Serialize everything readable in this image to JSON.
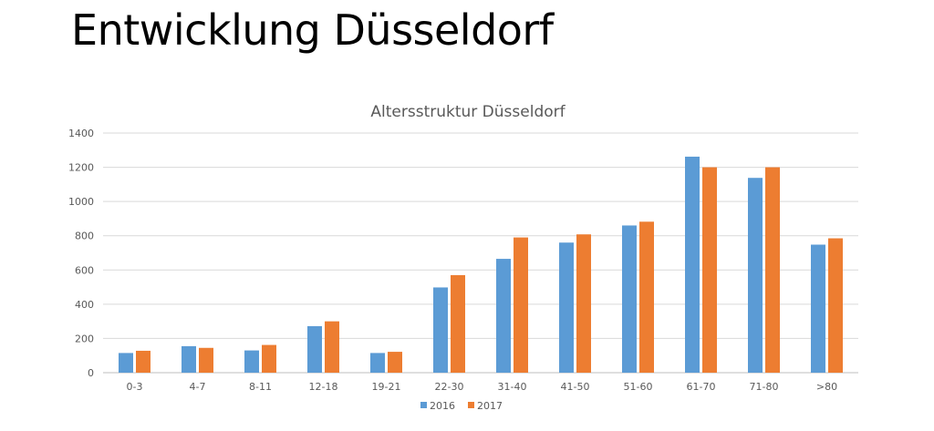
{
  "slide": {
    "title": "Entwicklung Düsseldorf"
  },
  "chart_data": {
    "type": "bar",
    "title": "Altersstruktur Düsseldorf",
    "xlabel": "",
    "ylabel": "",
    "ylim": [
      0,
      1400
    ],
    "yticks": [
      0,
      200,
      400,
      600,
      800,
      1000,
      1200,
      1400
    ],
    "grid": true,
    "legend_position": "bottom",
    "categories": [
      "0-3",
      "4-7",
      "8-11",
      "12-18",
      "19-21",
      "22-30",
      "31-40",
      "41-50",
      "51-60",
      "61-70",
      "71-80",
      ">80"
    ],
    "series": [
      {
        "name": "2016",
        "color": "#5B9BD5",
        "values": [
          115,
          155,
          130,
          272,
          115,
          498,
          665,
          760,
          860,
          1262,
          1138,
          748
        ]
      },
      {
        "name": "2017",
        "color": "#ED7D31",
        "values": [
          128,
          145,
          162,
          300,
          122,
          570,
          790,
          808,
          882,
          1200,
          1200,
          785
        ]
      }
    ]
  }
}
